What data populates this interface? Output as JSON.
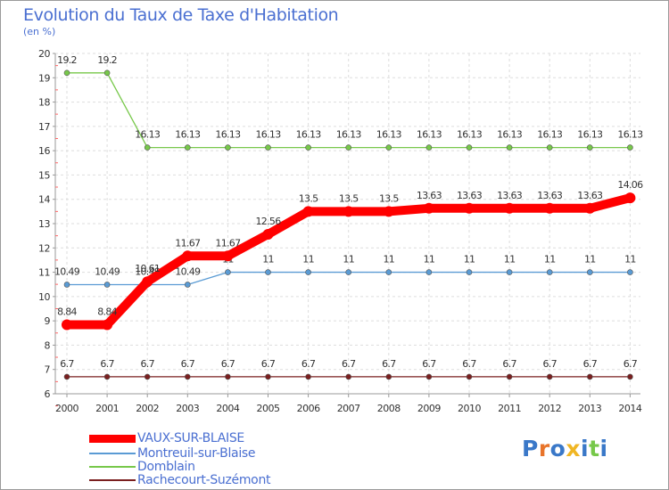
{
  "title": "Evolution du Taux de Taxe d'Habitation",
  "subtitle": "(en %)",
  "logo_text": "Proxiti",
  "chart_data": {
    "type": "line",
    "title": "Evolution du Taux de Taxe d'Habitation",
    "ylabel": "(en %)",
    "xlabel": "",
    "x": [
      "2000",
      "2001",
      "2002",
      "2003",
      "2004",
      "2005",
      "2006",
      "2007",
      "2008",
      "2009",
      "2010",
      "2011",
      "2012",
      "2013",
      "2014"
    ],
    "ylim": [
      6,
      20
    ],
    "yticks": [
      "6",
      "7",
      "8",
      "9",
      "10",
      "11",
      "12",
      "13",
      "14",
      "15",
      "16",
      "17",
      "18",
      "19",
      "20"
    ],
    "grid": true,
    "legend_position": "bottom-left",
    "series": [
      {
        "name": "VAUX-SUR-BLAISE",
        "color": "#ff0000",
        "values": [
          8.84,
          8.84,
          10.61,
          11.67,
          11.67,
          12.56,
          13.5,
          13.5,
          13.5,
          13.63,
          13.63,
          13.63,
          13.63,
          13.63,
          14.06
        ],
        "labels": [
          "8.84",
          "8.84",
          "10.61",
          "11.67",
          "11.67",
          "12.56",
          "13.5",
          "13.5",
          "13.5",
          "13.63",
          "13.63",
          "13.63",
          "13.63",
          "13.63",
          "14.06"
        ]
      },
      {
        "name": "Montreuil-sur-Blaise",
        "color": "#5a9bd4",
        "values": [
          10.49,
          10.49,
          10.49,
          10.49,
          11,
          11,
          11,
          11,
          11,
          11,
          11,
          11,
          11,
          11,
          11
        ],
        "labels": [
          "10.49",
          "10.49",
          "10.49",
          "10.49",
          "11",
          "11",
          "11",
          "11",
          "11",
          "11",
          "11",
          "11",
          "11",
          "11",
          "11"
        ]
      },
      {
        "name": "Domblain",
        "color": "#77c84a",
        "values": [
          19.2,
          19.2,
          16.13,
          16.13,
          16.13,
          16.13,
          16.13,
          16.13,
          16.13,
          16.13,
          16.13,
          16.13,
          16.13,
          16.13,
          16.13
        ],
        "labels": [
          "19.2",
          "19.2",
          "16.13",
          "16.13",
          "16.13",
          "16.13",
          "16.13",
          "16.13",
          "16.13",
          "16.13",
          "16.13",
          "16.13",
          "16.13",
          "16.13",
          "16.13"
        ]
      },
      {
        "name": "Rachecourt-Suzémont",
        "color": "#7a1f1f",
        "values": [
          6.7,
          6.7,
          6.7,
          6.7,
          6.7,
          6.7,
          6.7,
          6.7,
          6.7,
          6.7,
          6.7,
          6.7,
          6.7,
          6.7,
          6.7
        ],
        "labels": [
          "6.7",
          "6.7",
          "6.7",
          "6.7",
          "6.7",
          "6.7",
          "6.7",
          "6.7",
          "6.7",
          "6.7",
          "6.7",
          "6.7",
          "6.7",
          "6.7",
          "6.7"
        ]
      }
    ]
  }
}
